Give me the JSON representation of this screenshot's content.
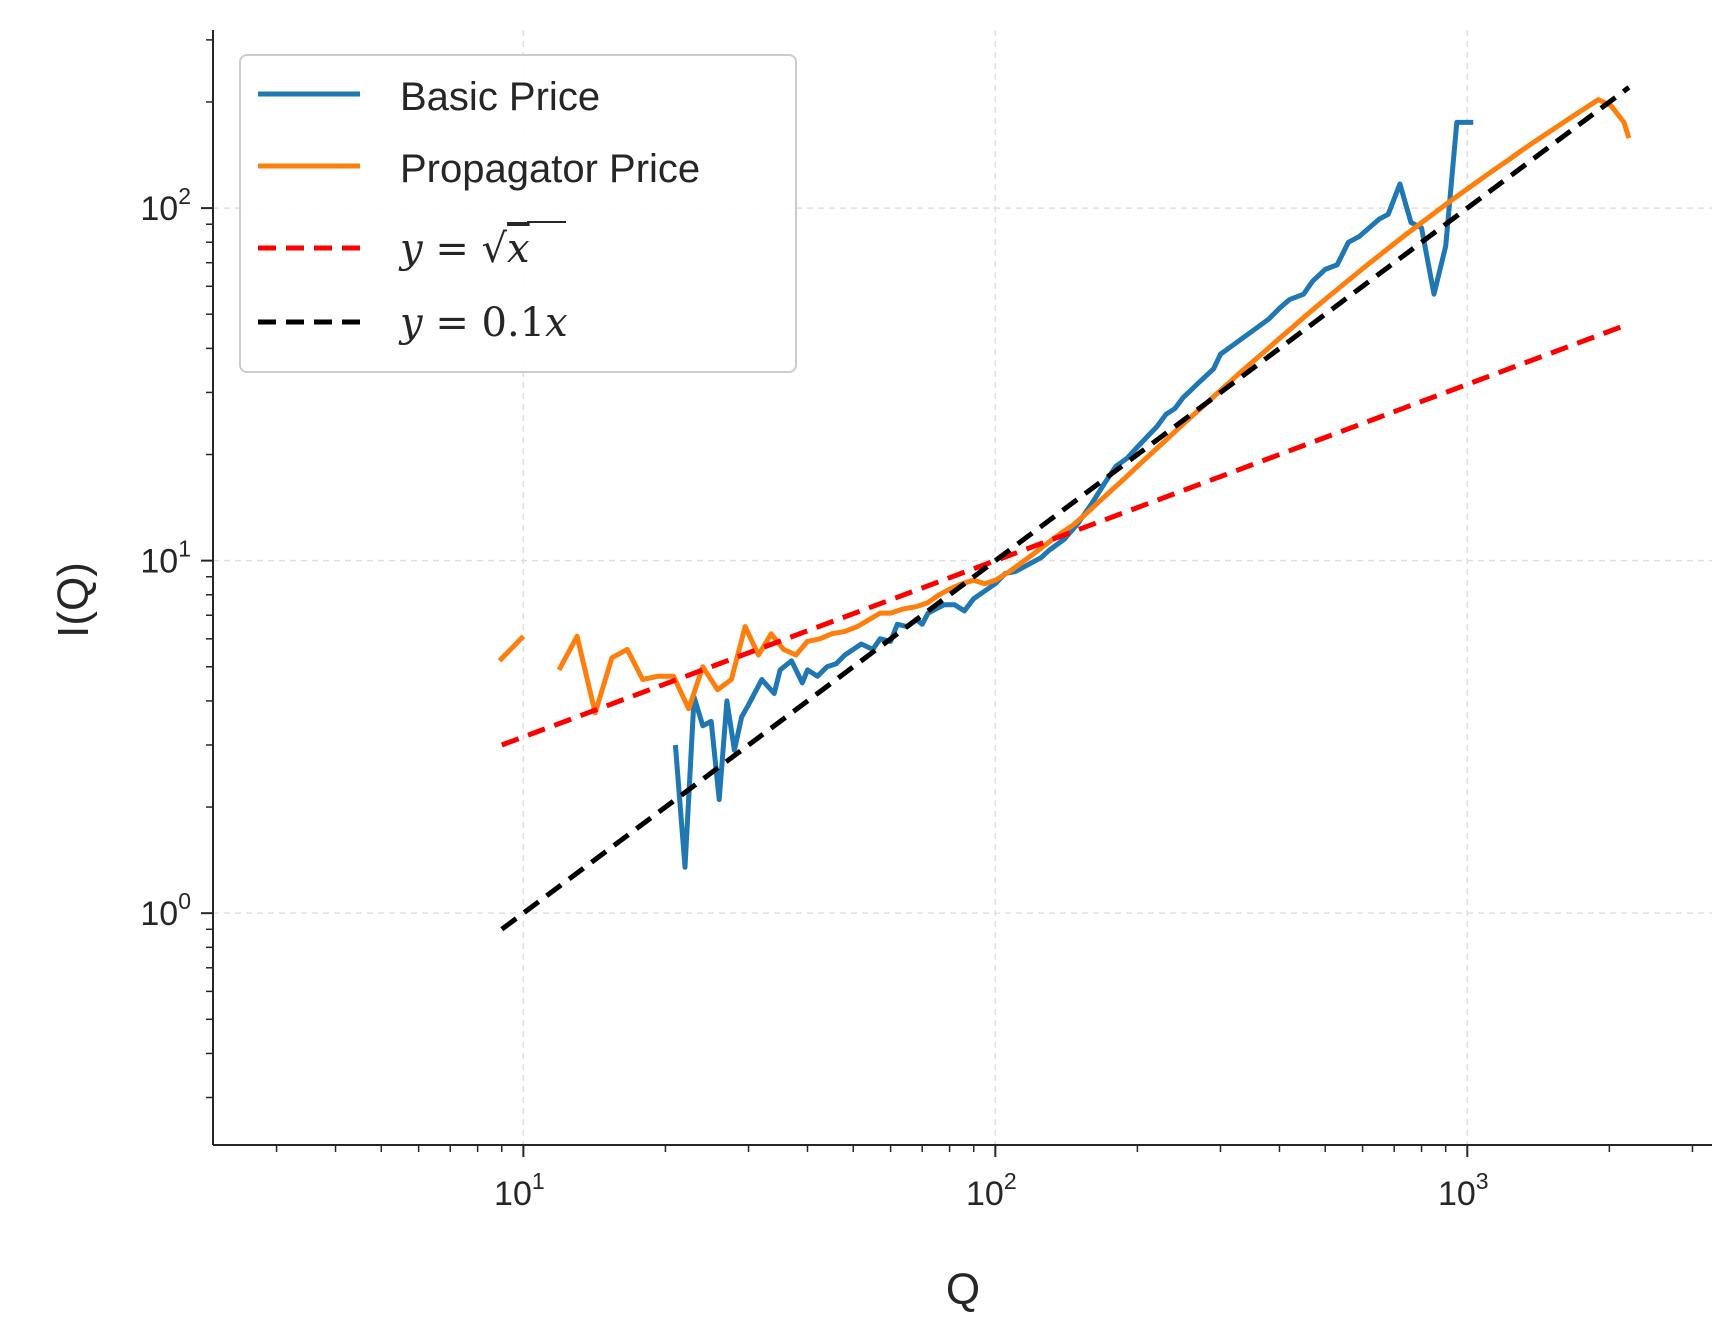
{
  "chart_data": {
    "type": "line",
    "xscale": "log",
    "yscale": "log",
    "xlabel": "Q",
    "ylabel": "I(Q)",
    "xlim": [
      2.2,
      3300
    ],
    "ylim": [
      0.22,
      320
    ],
    "grid": true,
    "legend_position": "top-left",
    "x_ticks": [
      {
        "base": "10",
        "exp": "1",
        "value": 10
      },
      {
        "base": "10",
        "exp": "2",
        "value": 100
      },
      {
        "base": "10",
        "exp": "3",
        "value": 1000
      }
    ],
    "y_ticks": [
      {
        "base": "10",
        "exp": "0",
        "value": 1
      },
      {
        "base": "10",
        "exp": "1",
        "value": 10
      },
      {
        "base": "10",
        "exp": "2",
        "value": 100
      }
    ],
    "series": [
      {
        "name": "Basic Price",
        "color": "#1f77b4",
        "style": "solid",
        "x": [
          21,
          22,
          23,
          24,
          25,
          26,
          27,
          28,
          29,
          30,
          32,
          34,
          35,
          37,
          39,
          40,
          42,
          44,
          46,
          48,
          50,
          52,
          55,
          57,
          60,
          62,
          65,
          68,
          70,
          72,
          75,
          78,
          82,
          86,
          90,
          95,
          100,
          105,
          110,
          115,
          120,
          125,
          130,
          140,
          150,
          160,
          170,
          180,
          190,
          200,
          210,
          220,
          230,
          240,
          250,
          260,
          270,
          290,
          300,
          320,
          340,
          360,
          380,
          400,
          420,
          450,
          470,
          500,
          530,
          560,
          590,
          620,
          650,
          680,
          720,
          760,
          800,
          850,
          900,
          950,
          1000,
          1030
        ],
        "y": [
          3.0,
          1.35,
          4.1,
          3.4,
          3.5,
          2.1,
          4.0,
          2.9,
          3.6,
          3.9,
          4.6,
          4.2,
          4.9,
          5.2,
          4.5,
          4.9,
          4.7,
          5.0,
          5.1,
          5.4,
          5.6,
          5.8,
          5.6,
          6.0,
          5.9,
          6.6,
          6.5,
          6.8,
          6.6,
          7.1,
          7.3,
          7.5,
          7.5,
          7.2,
          7.8,
          8.2,
          8.6,
          9.2,
          9.3,
          9.6,
          9.9,
          10.2,
          10.7,
          11.5,
          12.8,
          14.5,
          16.5,
          18.5,
          19.5,
          21.0,
          22.5,
          24.0,
          26.0,
          27.0,
          29.0,
          30.5,
          32.0,
          35.0,
          38.5,
          41.0,
          43.5,
          46.0,
          48.5,
          52.0,
          55.0,
          57.0,
          62.0,
          67.0,
          69.0,
          80.0,
          83.0,
          88.0,
          93.0,
          96.0,
          117.0,
          91.0,
          88.0,
          57.0,
          78.0,
          175.0,
          175.0,
          175.0
        ]
      },
      {
        "name": "Propagator Price",
        "color": "#ff7f0e",
        "style": "solid",
        "x": [
          8.9,
          10,
          10.9,
          11.9,
          13,
          14.2,
          15.4,
          16.6,
          17.9,
          19.3,
          20.8,
          22.4,
          24,
          25.8,
          27.6,
          29.5,
          31.5,
          33.5,
          35.6,
          37.8,
          40,
          42.5,
          45,
          48,
          51,
          54,
          57,
          60,
          64,
          68,
          72,
          76,
          80,
          85,
          90,
          95,
          100,
          107,
          114,
          121,
          129,
          137,
          146,
          155,
          165,
          176,
          187,
          199,
          212,
          226,
          240,
          256,
          273,
          290,
          309,
          329,
          350,
          373,
          397,
          423,
          450,
          479,
          510,
          543,
          578,
          615,
          655,
          697,
          742,
          790,
          841,
          895,
          953,
          1015,
          1080,
          1150,
          1225,
          1300,
          1385,
          1475,
          1570,
          1672,
          1780,
          1895,
          2018,
          2148,
          2200
        ],
        "y": [
          5.2,
          6.1,
          null,
          4.9,
          6.1,
          3.7,
          5.3,
          5.6,
          4.6,
          4.7,
          4.7,
          3.8,
          5.0,
          4.3,
          4.6,
          6.5,
          5.4,
          6.2,
          5.6,
          5.4,
          5.9,
          6.0,
          6.2,
          6.3,
          6.5,
          6.8,
          7.1,
          7.1,
          7.3,
          7.4,
          7.6,
          8.0,
          8.3,
          8.6,
          8.8,
          8.6,
          8.8,
          9.3,
          9.9,
          10.5,
          11.2,
          11.9,
          12.6,
          13.5,
          14.6,
          15.8,
          17.0,
          18.4,
          19.9,
          21.5,
          23.2,
          25.1,
          27.1,
          29.2,
          31.5,
          34.0,
          36.5,
          39.3,
          42.3,
          45.5,
          48.9,
          52.5,
          56.3,
          60.3,
          64.6,
          69.1,
          73.9,
          78.9,
          84.2,
          89.8,
          95.6,
          101.8,
          108.2,
          114.9,
          122.0,
          129.4,
          137.2,
          145.4,
          153.9,
          162.8,
          172.2,
          182.0,
          192.3,
          203.1,
          195.0,
          175.0,
          158.0
        ]
      },
      {
        "name": "y = √x",
        "color": "#ff0000",
        "style": "dashed",
        "x": [
          9,
          2200
        ],
        "y": [
          3.0,
          46.9
        ]
      },
      {
        "name": "y = 0.1x",
        "color": "#000000",
        "style": "dashed",
        "x": [
          9,
          2200
        ],
        "y": [
          0.9,
          220
        ]
      }
    ],
    "legend": [
      {
        "label": "Basic Price",
        "color": "#1f77b4",
        "style": "solid",
        "math": false
      },
      {
        "label": "Propagator Price",
        "color": "#ff7f0e",
        "style": "solid",
        "math": false
      },
      {
        "label": "y = √x",
        "color": "#ff0000",
        "style": "dashed",
        "math": true
      },
      {
        "label": "y = 0.1x",
        "color": "#000000",
        "style": "dashed",
        "math": true
      }
    ]
  }
}
